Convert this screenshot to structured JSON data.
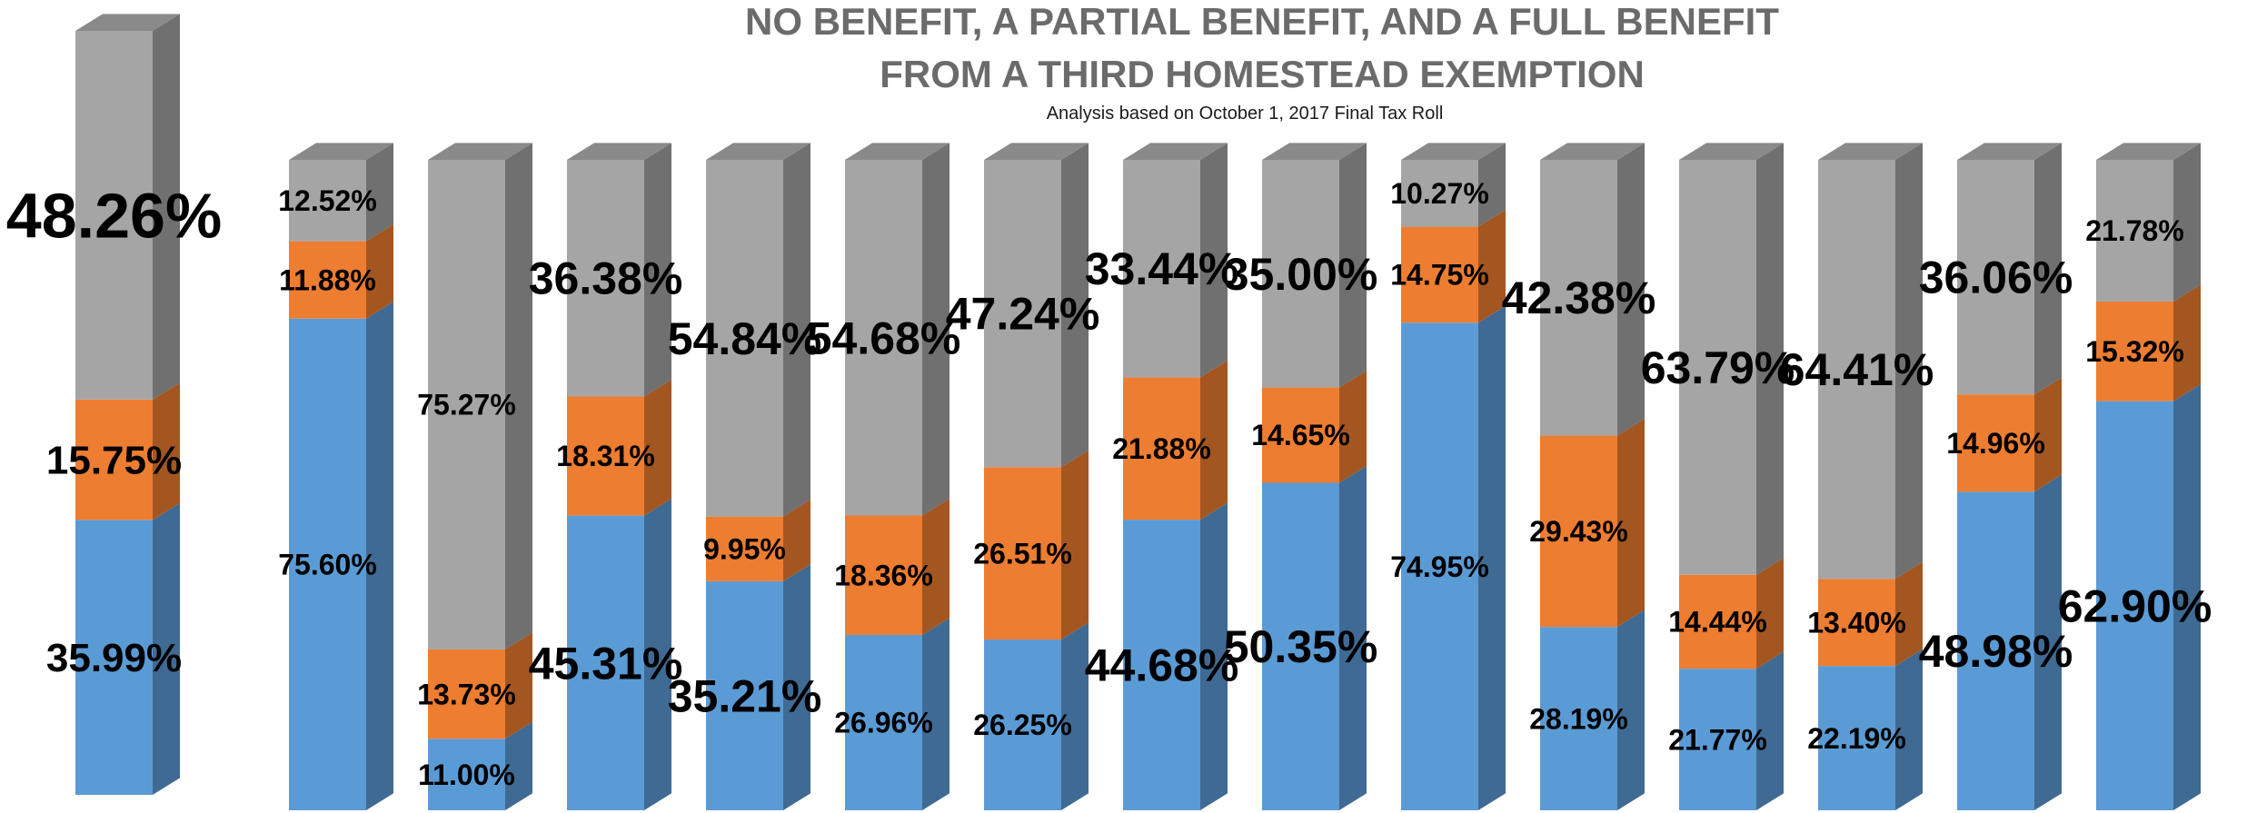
{
  "colors": {
    "none_blue": "#5b9bd5",
    "partial_orange": "#ed7d31",
    "full_gray": "#a5a5a5",
    "title_gray": "#6b6b6b"
  },
  "chart_data": {
    "type": "bar",
    "stacked": true,
    "style": "3d-column",
    "title": [
      "NO BENEFIT, A PARTIAL BENEFIT, AND A FULL BENEFIT",
      "FROM A THIRD HOMESTEAD EXEMPTION"
    ],
    "subtitle": "Analysis based on October 1, 2017 Final Tax Roll",
    "xlabel": "",
    "ylabel": "",
    "ylim": [
      0,
      100
    ],
    "legend": "none",
    "grid": false,
    "series": [
      {
        "values": [
          35.99,
          75.6,
          11.0,
          45.31,
          35.21,
          26.96,
          26.25,
          44.68,
          50.35,
          74.95,
          28.19,
          21.77,
          22.19,
          48.98,
          62.9
        ],
        "labels": [
          "35.99%",
          "75.60%",
          "11.00%",
          "45.31%",
          "35.21%",
          "26.96%",
          "26.25%",
          "44.68%",
          "50.35%",
          "74.95%",
          "28.19%",
          "21.77%",
          "22.19%",
          "48.98%",
          "62.90%"
        ]
      },
      {
        "values": [
          15.75,
          11.88,
          13.73,
          18.31,
          9.95,
          18.36,
          26.51,
          21.88,
          14.65,
          14.75,
          29.43,
          14.44,
          13.4,
          14.96,
          15.32
        ],
        "labels": [
          "15.75%",
          "11.88%",
          "13.73%",
          "18.31%",
          "9.95%",
          "18.36%",
          "26.51%",
          "21.88%",
          "14.65%",
          "14.75%",
          "29.43%",
          "14.44%",
          "13.40%",
          "14.96%",
          "15.32%"
        ]
      },
      {
        "values": [
          48.26,
          12.52,
          75.27,
          36.38,
          54.84,
          54.68,
          47.24,
          33.44,
          35.0,
          10.27,
          42.38,
          63.79,
          64.41,
          36.06,
          21.78
        ],
        "labels": [
          "48.26%",
          "12.52%",
          "75.27%",
          "36.38%",
          "54.84%",
          "54.68%",
          "47.24%",
          "33.44%",
          "35.00%",
          "10.27%",
          "42.38%",
          "63.79%",
          "64.41%",
          "36.06%",
          "21.78%"
        ]
      }
    ]
  }
}
